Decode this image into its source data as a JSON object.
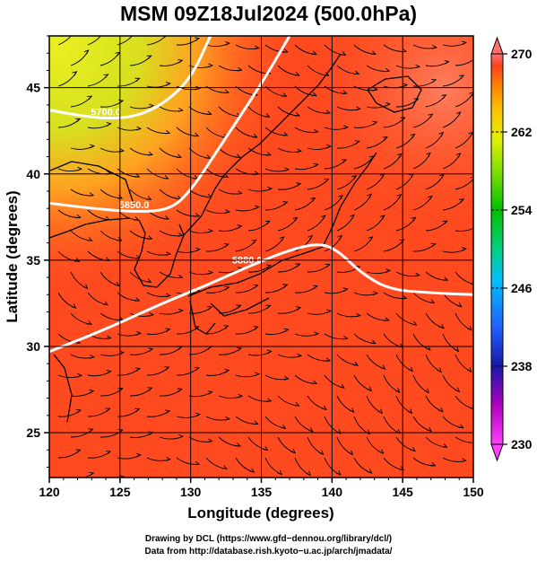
{
  "title": "MSM 09Z18Jul2024 (500.0hPa)",
  "chart_data": {
    "type": "map",
    "x_axis": {
      "label": "Longitude (degrees)",
      "range": [
        120,
        150
      ],
      "ticks": [
        120,
        125,
        130,
        135,
        140,
        145,
        150
      ],
      "tick_labels": [
        "120",
        "125",
        "130",
        "135",
        "140",
        "145",
        "150"
      ]
    },
    "y_axis": {
      "label": "Latitude  (degrees)",
      "range": [
        22.4,
        48
      ],
      "ticks": [
        25,
        30,
        35,
        40,
        45
      ],
      "tick_labels": [
        "25",
        "30",
        "35",
        "40",
        "45"
      ]
    },
    "colorbar": {
      "range": [
        230,
        270
      ],
      "ticks": [
        230,
        238,
        246,
        254,
        262,
        270
      ],
      "tick_labels": [
        "230",
        "238",
        "246",
        "254",
        "262",
        "270"
      ],
      "colors": [
        "#ff40ff",
        "#c000c0",
        "#2020c0",
        "#2060ff",
        "#00c0ff",
        "#00d080",
        "#00c000",
        "#80e000",
        "#e0f000",
        "#ffc000",
        "#ff8000",
        "#ff3000",
        "#ff7070"
      ]
    },
    "contours": [
      {
        "label": "5700.0",
        "points": [
          [
            120,
            43.7
          ],
          [
            122,
            43.4
          ],
          [
            124,
            43.2
          ],
          [
            126,
            43.3
          ],
          [
            128,
            44.0
          ],
          [
            130,
            45.5
          ],
          [
            131.4,
            48
          ]
        ]
      },
      {
        "label": "5850.0",
        "points": [
          [
            120,
            38.3
          ],
          [
            123,
            38.0
          ],
          [
            126,
            37.8
          ],
          [
            128.5,
            37.9
          ],
          [
            130,
            39.0
          ],
          [
            132,
            41.5
          ],
          [
            135,
            45.2
          ],
          [
            137,
            48
          ]
        ]
      },
      {
        "label": "5880.0",
        "points": [
          [
            120,
            29.7
          ],
          [
            124,
            31.0
          ],
          [
            128,
            32.5
          ],
          [
            131,
            33.5
          ],
          [
            134,
            34.6
          ],
          [
            137,
            35.6
          ],
          [
            139.2,
            36.0
          ],
          [
            140.5,
            35.5
          ],
          [
            142,
            34.3
          ],
          [
            144,
            33.3
          ],
          [
            147,
            33.1
          ],
          [
            150,
            33.0
          ]
        ]
      }
    ],
    "field_colors": {
      "warm": "#ff4a20",
      "cold_north": "#e8f020"
    }
  },
  "credits": {
    "line1": "Drawing by DCL (https://www.gfd−dennou.org/library/dcl/)",
    "line2": "Data from http://database.rish.kyoto−u.ac.jp/arch/jmadata/"
  }
}
